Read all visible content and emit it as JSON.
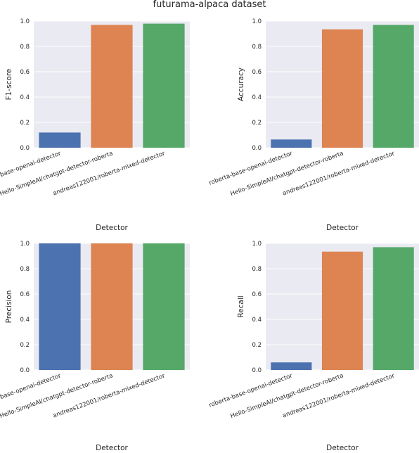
{
  "title": "futurama-alpaca dataset",
  "colors": {
    "axes_bg": "#eaeaf2",
    "grid": "#ffffff"
  },
  "chart_data": [
    {
      "type": "bar",
      "categories": [
        "roberta-base-openai-detector",
        "Hello-SimpleAI/chatgpt-detector-roberta",
        "andreas122001/roberta-mixed-detector"
      ],
      "values": [
        0.12,
        0.97,
        0.98
      ],
      "colors": [
        "#4c72b0",
        "#dd8452",
        "#55a868"
      ],
      "xlabel": "Detector",
      "ylabel": "F1-score",
      "ylim": [
        0,
        1.0
      ],
      "yticks": [
        "0.0",
        "0.2",
        "0.4",
        "0.6",
        "0.8",
        "1.0"
      ],
      "grid": true
    },
    {
      "type": "bar",
      "categories": [
        "roberta-base-openai-detector",
        "Hello-SimpleAI/chatgpt-detector-roberta",
        "andreas122001/roberta-mixed-detector"
      ],
      "values": [
        0.065,
        0.935,
        0.97
      ],
      "colors": [
        "#4c72b0",
        "#dd8452",
        "#55a868"
      ],
      "xlabel": "Detector",
      "ylabel": "Accuracy",
      "ylim": [
        0,
        1.0
      ],
      "yticks": [
        "0.0",
        "0.2",
        "0.4",
        "0.6",
        "0.8",
        "1.0"
      ],
      "grid": true
    },
    {
      "type": "bar",
      "categories": [
        "roberta-base-openai-detector",
        "Hello-SimpleAI/chatgpt-detector-roberta",
        "andreas122001/roberta-mixed-detector"
      ],
      "values": [
        1.0,
        1.0,
        1.0
      ],
      "colors": [
        "#4c72b0",
        "#dd8452",
        "#55a868"
      ],
      "xlabel": "Detector",
      "ylabel": "Precision",
      "ylim": [
        0,
        1.0
      ],
      "yticks": [
        "0.0",
        "0.2",
        "0.4",
        "0.6",
        "0.8",
        "1.0"
      ],
      "grid": true
    },
    {
      "type": "bar",
      "categories": [
        "roberta-base-openai-detector",
        "Hello-SimpleAI/chatgpt-detector-roberta",
        "andreas122001/roberta-mixed-detector"
      ],
      "values": [
        0.06,
        0.935,
        0.97
      ],
      "colors": [
        "#4c72b0",
        "#dd8452",
        "#55a868"
      ],
      "xlabel": "Detector",
      "ylabel": "Recall",
      "ylim": [
        0,
        1.0
      ],
      "yticks": [
        "0.0",
        "0.2",
        "0.4",
        "0.6",
        "0.8",
        "1.0"
      ],
      "grid": true
    }
  ]
}
